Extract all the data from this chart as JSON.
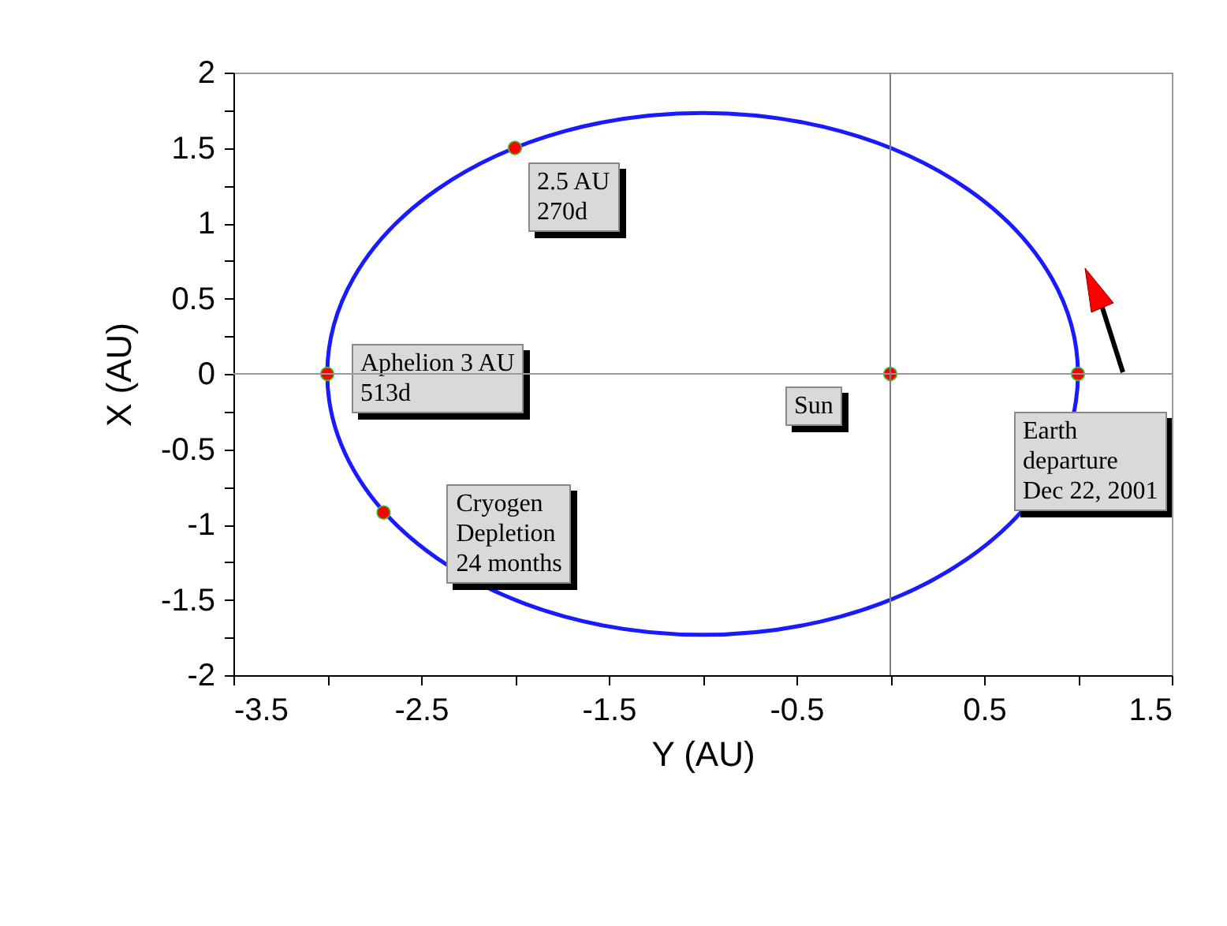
{
  "chart_data": {
    "type": "scatter",
    "xlabel": "Y  (AU)",
    "ylabel": "X (AU)",
    "xlim": [
      -3.5,
      1.5
    ],
    "ylim": [
      -2,
      2
    ],
    "xticks": [
      -3.5,
      {
        "value": -3,
        "label": null
      },
      -2.5,
      {
        "value": -2,
        "label": null
      },
      -1.5,
      {
        "value": -1,
        "label": null
      },
      -0.5,
      {
        "value": 0,
        "label": null
      },
      0.5,
      {
        "value": 1,
        "label": null
      },
      1.5
    ],
    "yticks": [
      -2,
      {
        "value": -1.75,
        "label": null
      },
      -1.5,
      {
        "value": -1.25,
        "label": null
      },
      -1,
      {
        "value": -0.75,
        "label": null
      },
      -0.5,
      {
        "value": -0.25,
        "label": null
      },
      0,
      {
        "value": 0.25,
        "label": null
      },
      0.5,
      {
        "value": 0.75,
        "label": null
      },
      1,
      {
        "value": 1.25,
        "label": null
      },
      1.5,
      {
        "value": 1.75,
        "label": null
      },
      2
    ],
    "grid": false,
    "series": [
      {
        "color": "#ff0000",
        "marker": "circle",
        "x": [
          1,
          0,
          -3,
          -2,
          -2.7
        ],
        "values": [
          0,
          0,
          0,
          1.5,
          -0.92
        ]
      }
    ],
    "ref_lines": [
      {
        "axis": "y",
        "value": 0,
        "color": "#999999"
      },
      {
        "axis": "x",
        "value": 0,
        "color": "#808080"
      }
    ],
    "annotations": [
      {
        "text": "2.5 AU\n270d",
        "x": -2,
        "y": 1.5
      },
      {
        "text": "Aphelion 3 AU\n513d",
        "x": -3,
        "y": 0
      },
      {
        "text": "Cryogen\nDepletion\n24 months",
        "x": -2.7,
        "y": -0.92
      },
      {
        "text": "Sun",
        "x": 0,
        "y": 0
      },
      {
        "text": "Earth\ndeparture\nDec 22, 2001",
        "x": 1,
        "y": 0
      }
    ]
  }
}
